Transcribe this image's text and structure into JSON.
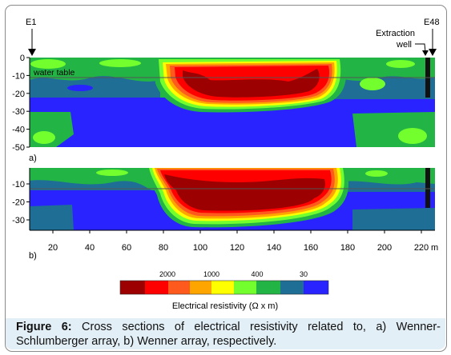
{
  "figure": {
    "electrode_left": "E1",
    "electrode_right": "E48",
    "extraction_well_label_line1": "Extraction",
    "extraction_well_label_line2": "well",
    "water_table_label": "water table",
    "panel_a_label": "a)",
    "panel_b_label": "b)",
    "panel_a_depth_ticks": [
      "0",
      "-10",
      "-20",
      "-30",
      "-40",
      "-50"
    ],
    "panel_b_depth_ticks": [
      "-10",
      "-20",
      "-30"
    ],
    "distance_ticks": [
      "20",
      "40",
      "60",
      "80",
      "100",
      "120",
      "140",
      "160",
      "180",
      "200",
      "220"
    ],
    "distance_unit": "m",
    "colorbar_ticks": [
      "2000",
      "1000",
      "400",
      "30"
    ],
    "colorbar_label": "Electrical resistivity (Ω x m)",
    "colorbar_colors": [
      "#9c0000",
      "#ff0000",
      "#ff5a1e",
      "#ffa500",
      "#ffff00",
      "#73ff2d",
      "#23b446",
      "#1e6e96",
      "#2823ff"
    ]
  },
  "caption": {
    "prefix": "Figure 6:",
    "text": "Cross sections of electrical resistivity related to, a) Wenner-Schlumberger array, b) Wenner array, respectively."
  }
}
